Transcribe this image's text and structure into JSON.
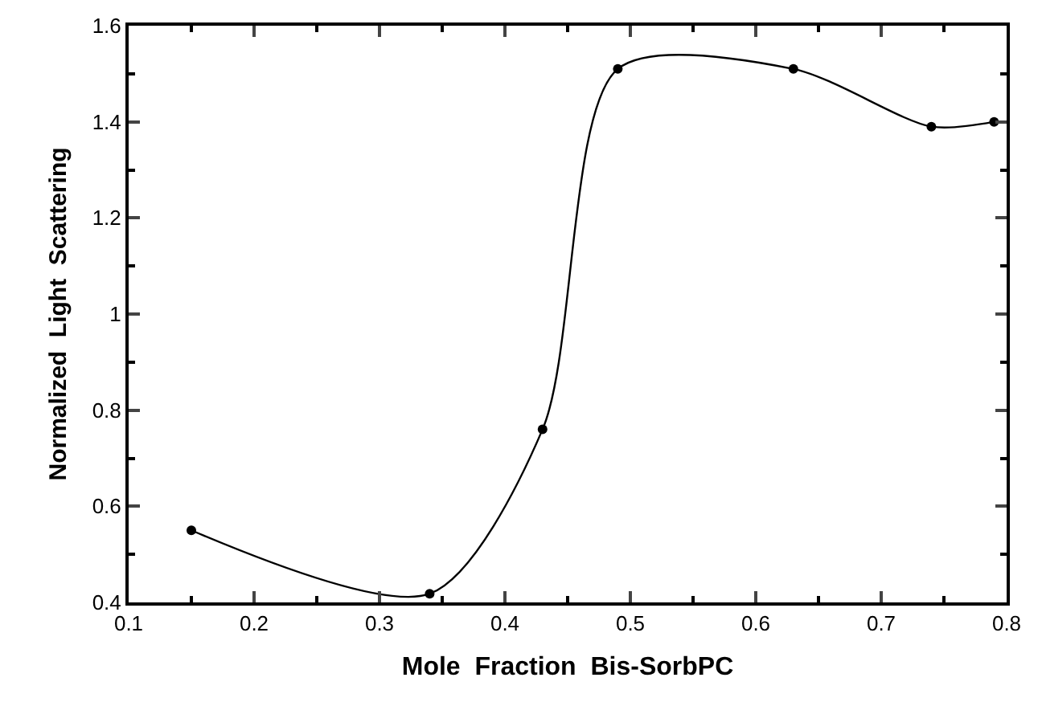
{
  "chart_data": {
    "type": "line",
    "xlabel": "Mole  Fraction  Bis-SorbPC",
    "ylabel": "Normalized  Light  Scattering",
    "x": [
      0.15,
      0.34,
      0.43,
      0.49,
      0.63,
      0.74,
      0.79
    ],
    "series": [
      {
        "color": "#000000",
        "values": [
          0.55,
          0.418,
          0.76,
          1.51,
          1.51,
          1.39,
          1.4
        ]
      }
    ],
    "xlim": [
      0.1,
      0.8
    ],
    "xticks": [
      0.1,
      0.2,
      0.3,
      0.4,
      0.5,
      0.6,
      0.7,
      0.8
    ],
    "ylim": [
      0.4,
      1.6
    ],
    "yticks": [
      0.4,
      0.6,
      0.8,
      1,
      1.2,
      1.4,
      1.6
    ],
    "marker": "circle",
    "line_style": "solid"
  }
}
